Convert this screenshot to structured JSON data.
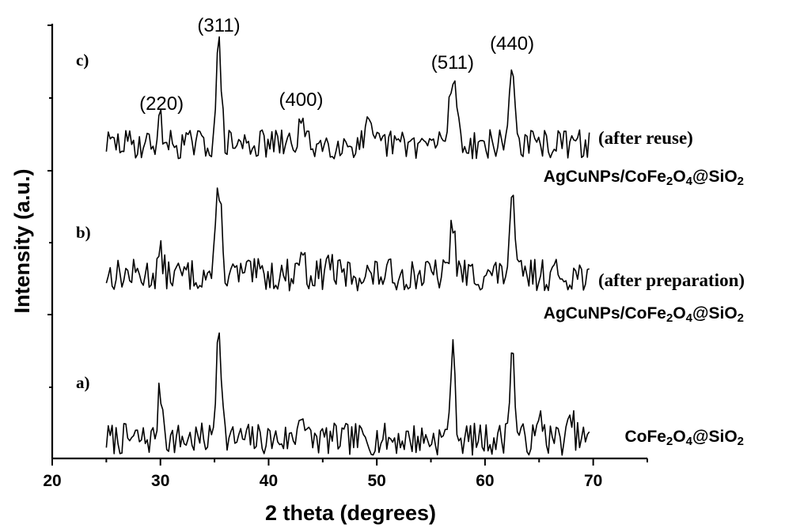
{
  "chart_data": {
    "type": "line",
    "xlabel": "2 theta (degrees)",
    "ylabel": "Intensity (a.u.)",
    "xlim": [
      20,
      75
    ],
    "xticks": [
      20,
      30,
      40,
      50,
      60,
      70
    ],
    "y_tick_labels_shown": false,
    "grid": false,
    "peak_labels": [
      {
        "text": "(220)",
        "x": 30.1
      },
      {
        "text": "(311)",
        "x": 35.4
      },
      {
        "text": "(400)",
        "x": 43.0
      },
      {
        "text": "(511)",
        "x": 57.0
      },
      {
        "text": "(440)",
        "x": 62.5
      }
    ],
    "series": [
      {
        "letter": "a)",
        "note": "",
        "label_base": "CoFe2O4@SiO2",
        "peaks": [
          [
            30.0,
            18
          ],
          [
            35.4,
            44
          ],
          [
            43.0,
            12
          ],
          [
            57.0,
            32
          ],
          [
            62.5,
            33
          ],
          [
            65.2,
            8
          ],
          [
            68.0,
            7
          ]
        ],
        "noise": 12,
        "seed": 7
      },
      {
        "letter": "b)",
        "note": "(after preparation)",
        "label_base": "AgCuNPs/CoFe2O4@SiO2",
        "peaks": [
          [
            30.0,
            7
          ],
          [
            35.4,
            34
          ],
          [
            43.0,
            10
          ],
          [
            45.6,
            6
          ],
          [
            57.0,
            20
          ],
          [
            62.5,
            27
          ]
        ],
        "noise": 12,
        "seed": 13
      },
      {
        "letter": "c)",
        "note": "(after reuse)",
        "label_base": "AgCuNPs/CoFe2O4@SiO2",
        "peaks": [
          [
            30.0,
            8
          ],
          [
            35.4,
            36
          ],
          [
            43.0,
            9
          ],
          [
            49.2,
            6
          ],
          [
            56.8,
            18
          ],
          [
            57.3,
            18
          ],
          [
            62.5,
            31
          ]
        ],
        "noise": 11,
        "seed": 29
      }
    ]
  }
}
